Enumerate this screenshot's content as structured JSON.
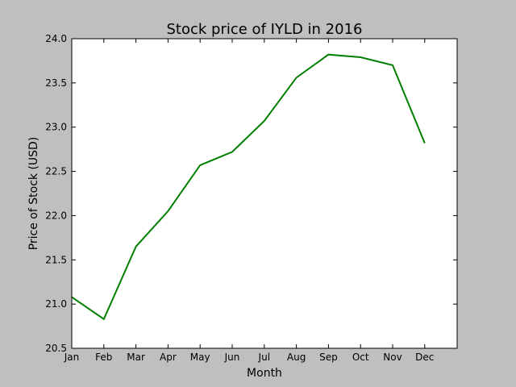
{
  "chart_data": {
    "type": "line",
    "title": "Stock price of IYLD in 2016",
    "xlabel": "Month",
    "ylabel": "Price of Stock (USD)",
    "categories": [
      "Jan",
      "Feb",
      "Mar",
      "Apr",
      "May",
      "Jun",
      "Jul",
      "Aug",
      "Sep",
      "Oct",
      "Nov",
      "Dec"
    ],
    "series": [
      {
        "values": [
          21.08,
          20.83,
          21.65,
          22.05,
          22.57,
          22.72,
          23.07,
          23.56,
          23.82,
          23.79,
          23.7,
          22.82
        ],
        "color": "#007f00"
      }
    ],
    "ylim": [
      20.5,
      24.0
    ],
    "yticks": [
      "20.5",
      "21.0",
      "21.5",
      "22.0",
      "22.5",
      "23.0",
      "23.5",
      "24.0"
    ],
    "grid": false,
    "legend": "none"
  }
}
